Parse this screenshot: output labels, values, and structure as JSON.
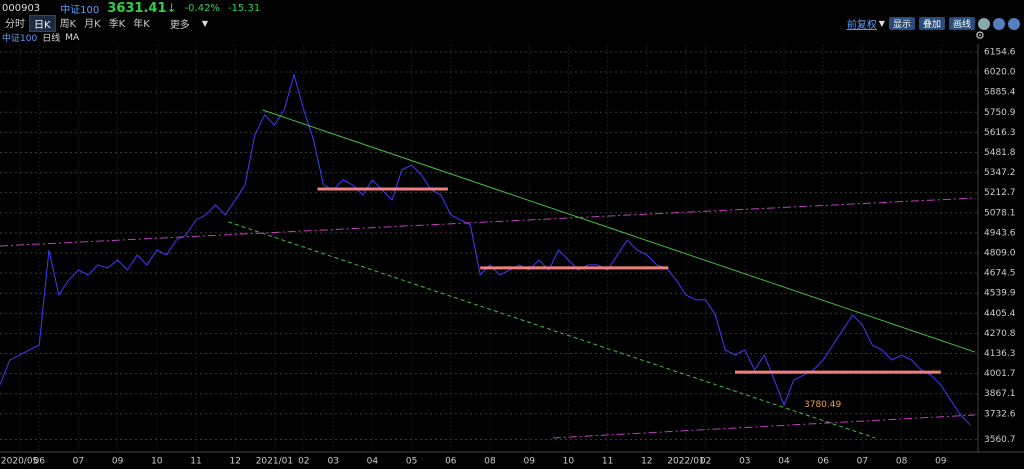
{
  "header": {
    "code": "000903",
    "name": "中证100",
    "price": "3631.41",
    "arrow": "↓",
    "change_pct": "-0.42%",
    "change": "-15.31"
  },
  "toolbar": {
    "tabs": [
      "分时",
      "日K",
      "周K",
      "月K",
      "季K",
      "年K"
    ],
    "more": "更多",
    "adjust": "前复权",
    "buttons": [
      "显示",
      "叠加",
      "画线"
    ]
  },
  "chart_label": {
    "period": "日线",
    "indicator": "MA"
  },
  "chart_data": {
    "type": "line",
    "categories": [
      null,
      null,
      "2020/05",
      null,
      "06",
      null,
      null,
      null,
      "07",
      null,
      null,
      null,
      "09",
      null,
      null,
      null,
      "10",
      null,
      null,
      null,
      "11",
      null,
      null,
      null,
      "12",
      null,
      null,
      null,
      "2021/01",
      null,
      null,
      "02",
      null,
      null,
      "03",
      null,
      null,
      null,
      "04",
      null,
      null,
      null,
      "05",
      null,
      null,
      null,
      "06",
      null,
      null,
      null,
      "08",
      null,
      null,
      null,
      "09",
      null,
      null,
      null,
      "10",
      null,
      null,
      null,
      "11",
      null,
      null,
      null,
      "12",
      null,
      null,
      null,
      "2022/01",
      null,
      "02",
      null,
      null,
      null,
      "03",
      null,
      null,
      null,
      "04",
      null,
      null,
      null,
      "06",
      null,
      null,
      null,
      "07",
      null,
      null,
      null,
      "08",
      null,
      null,
      null,
      "09",
      null,
      null,
      null
    ],
    "series": [
      {
        "name": "中证100",
        "color": "#3c3cff",
        "values": [
          3926,
          4093,
          4126,
          4160,
          4193,
          4829,
          4528,
          4628,
          4695,
          4662,
          4729,
          4709,
          4762,
          4695,
          4796,
          4729,
          4829,
          4796,
          4896,
          4930,
          5030,
          5064,
          5130,
          5064,
          5164,
          5264,
          5599,
          5733,
          5666,
          5766,
          6001,
          5766,
          5566,
          5264,
          5231,
          5298,
          5264,
          5197,
          5298,
          5231,
          5164,
          5365,
          5398,
          5331,
          5231,
          5197,
          5064,
          5030,
          4997,
          4662,
          4729,
          4662,
          4695,
          4729,
          4695,
          4762,
          4695,
          4829,
          4762,
          4695,
          4729,
          4729,
          4695,
          4796,
          4896,
          4829,
          4796,
          4729,
          4709,
          4628,
          4528,
          4495,
          4495,
          4394,
          4160,
          4126,
          4160,
          4026,
          4126,
          3959,
          3790,
          3959,
          3992,
          4026,
          4093,
          4193,
          4294,
          4394,
          4327,
          4193,
          4160,
          4093,
          4126,
          4093,
          4026,
          3992,
          3926,
          3825,
          3725,
          3658
        ]
      }
    ],
    "ylim": [
      3477,
      6201
    ],
    "yticks": [
      6154.6,
      {
        "value": 6020.0,
        "label": "6020.0"
      },
      5885.4,
      5750.9,
      5616.3,
      5481.8,
      5347.2,
      5212.7,
      5078.1,
      4943.6,
      {
        "value": 4809.0,
        "label": "4809.0"
      },
      4674.5,
      4539.9,
      4405.4,
      4270.8,
      4136.3,
      4001.7,
      3867.1,
      3732.6,
      3560.7
    ],
    "grid": true,
    "annotations": [
      {
        "x": 80,
        "value": 3780.49,
        "label": "3780.49",
        "color": "#e8a33c"
      }
    ],
    "drawings": [
      {
        "color": "#3fbf3f",
        "dash": "none",
        "x": [
          26.8,
          99.5
        ],
        "y": [
          5766,
          4146
        ]
      },
      {
        "color": "#3fbf3f",
        "dash": "4 3",
        "x": [
          23.3,
          89.3
        ],
        "y": [
          5017,
          3571
        ]
      },
      {
        "color": "#c040c0",
        "dash": "8 3 2 3",
        "x": [
          0,
          99.5
        ],
        "y": [
          4856,
          5177
        ]
      },
      {
        "color": "#c040c0",
        "dash": "8 3 2 3",
        "x": [
          56.4,
          99.5
        ],
        "y": [
          3571,
          3725
        ]
      },
      {
        "color": "#f08080",
        "dash": "none",
        "width": 3,
        "x": [
          32.4,
          45.7
        ],
        "y": [
          5237,
          5237
        ]
      },
      {
        "color": "#f08080",
        "dash": "none",
        "width": 3,
        "x": [
          49,
          68.2
        ],
        "y": [
          4709,
          4709
        ]
      },
      {
        "color": "#f08080",
        "dash": "none",
        "width": 3,
        "x": [
          75,
          96
        ],
        "y": [
          4012,
          4012
        ]
      }
    ]
  }
}
